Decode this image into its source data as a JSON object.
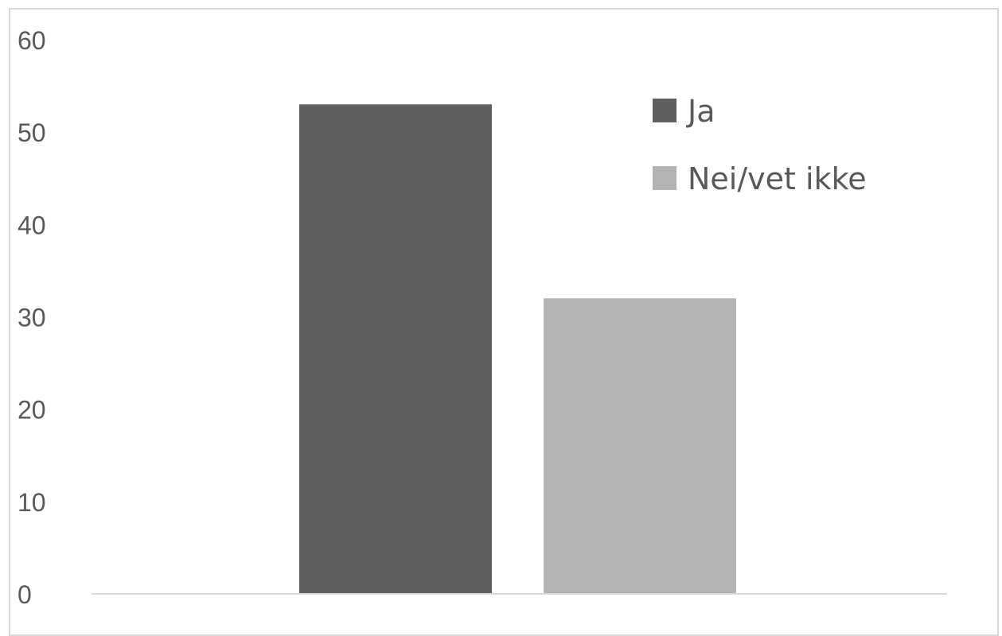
{
  "chart_data": {
    "type": "bar",
    "title": "",
    "xlabel": "",
    "ylabel": "",
    "ylim": [
      0,
      60
    ],
    "yticks": [
      "0",
      "10",
      "20",
      "30",
      "40",
      "50",
      "60"
    ],
    "grid": false,
    "legend_position": "top-right",
    "series": [
      {
        "name": "Ja",
        "value": 53,
        "color": "#5f5f5f"
      },
      {
        "name": "Nei/vet ikke",
        "value": 32,
        "color": "#b3b3b3"
      }
    ]
  }
}
